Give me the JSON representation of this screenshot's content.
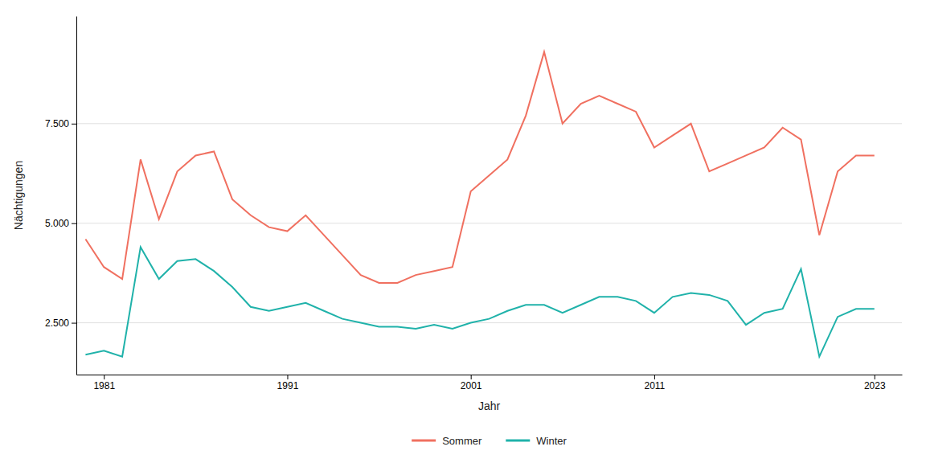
{
  "chart_data": {
    "type": "line",
    "xlabel": "Jahr",
    "ylabel": "Nächtigungen",
    "x": [
      1980,
      1981,
      1982,
      1983,
      1984,
      1985,
      1986,
      1987,
      1988,
      1989,
      1990,
      1991,
      1992,
      1993,
      1994,
      1995,
      1996,
      1997,
      1998,
      1999,
      2000,
      2001,
      2002,
      2003,
      2004,
      2005,
      2006,
      2007,
      2008,
      2009,
      2010,
      2011,
      2012,
      2013,
      2014,
      2015,
      2016,
      2017,
      2018,
      2019,
      2020,
      2021,
      2022,
      2023
    ],
    "series": [
      {
        "name": "Sommer",
        "color": "#F07060",
        "values": [
          4600,
          3900,
          3600,
          6600,
          5100,
          6300,
          6700,
          6800,
          5600,
          5200,
          4900,
          4800,
          5200,
          4700,
          4200,
          3700,
          3500,
          3500,
          3700,
          3800,
          3900,
          5800,
          6200,
          6600,
          7700,
          9300,
          7500,
          8000,
          8200,
          8000,
          7800,
          6900,
          7200,
          7500,
          6300,
          6500,
          6700,
          6900,
          7400,
          7100,
          4700,
          6300,
          6700,
          6700
        ]
      },
      {
        "name": "Winter",
        "color": "#20B2AA",
        "values": [
          1700,
          1800,
          1650,
          4400,
          3600,
          4050,
          4100,
          3800,
          3400,
          2900,
          2800,
          2900,
          3000,
          2800,
          2600,
          2500,
          2400,
          2400,
          2350,
          2450,
          2350,
          2500,
          2600,
          2800,
          2950,
          2950,
          2750,
          2950,
          3150,
          3150,
          3050,
          2750,
          3150,
          3250,
          3200,
          3050,
          2450,
          2750,
          2850,
          3850,
          1650,
          2650,
          2850,
          2850
        ]
      }
    ],
    "xlim": [
      1979.5,
      2024.5
    ],
    "ylim": [
      1200,
      10200
    ],
    "xticks": [
      1981,
      1991,
      2001,
      2011,
      2023
    ],
    "yticks": [
      {
        "value": 2500,
        "label": "2.500"
      },
      {
        "value": 5000,
        "label": "5.000"
      },
      {
        "value": 7500,
        "label": "7.500"
      }
    ],
    "grid": true,
    "legend": "bottom"
  }
}
